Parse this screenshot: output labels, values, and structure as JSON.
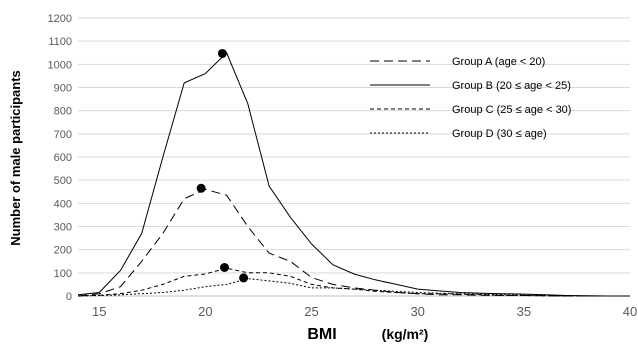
{
  "chart_data": {
    "type": "line",
    "xlabel": "BMI",
    "xunit": "(kg/m²)",
    "ylabel": "Number of male participants",
    "xlim": [
      14,
      40
    ],
    "ylim": [
      0,
      1200
    ],
    "xticks": [
      15,
      20,
      25,
      30,
      35,
      40
    ],
    "yticks": [
      0,
      100,
      200,
      300,
      400,
      500,
      600,
      700,
      800,
      900,
      1000,
      1100,
      1200
    ],
    "grid": "horizontal",
    "legend_position": "top-right",
    "series": [
      {
        "name": "Group A (age < 20)",
        "style": "long-dash",
        "x": [
          14,
          15,
          16,
          17,
          18,
          19,
          20,
          21,
          22,
          23,
          24,
          25,
          26,
          27,
          28,
          29,
          30,
          31,
          32,
          33,
          34,
          35,
          36,
          37,
          38,
          39,
          40
        ],
        "y": [
          0,
          10,
          40,
          150,
          270,
          420,
          460,
          435,
          300,
          185,
          150,
          80,
          50,
          35,
          25,
          15,
          10,
          5,
          5,
          3,
          2,
          2,
          1,
          0,
          0,
          0,
          0
        ],
        "peak": [
          19.8,
          465
        ]
      },
      {
        "name": "Group B (20 ≤ age < 25)",
        "style": "solid",
        "x": [
          14,
          15,
          16,
          17,
          18,
          19,
          20,
          21,
          22,
          23,
          24,
          25,
          26,
          27,
          28,
          29,
          30,
          31,
          32,
          33,
          34,
          35,
          36,
          37,
          38,
          39,
          40
        ],
        "y": [
          5,
          15,
          110,
          270,
          600,
          920,
          960,
          1050,
          830,
          475,
          340,
          225,
          135,
          95,
          70,
          50,
          30,
          22,
          15,
          12,
          10,
          8,
          5,
          2,
          1,
          0,
          0
        ],
        "peak": [
          20.8,
          1047
        ]
      },
      {
        "name": "Group C (25 ≤ age < 30)",
        "style": "dash",
        "x": [
          14,
          15,
          16,
          17,
          18,
          19,
          20,
          21,
          22,
          23,
          24,
          25,
          26,
          27,
          28,
          29,
          30,
          31,
          32,
          33,
          34,
          35,
          36,
          37,
          38,
          39,
          40
        ],
        "y": [
          0,
          3,
          10,
          25,
          50,
          85,
          95,
          120,
          100,
          100,
          85,
          50,
          35,
          30,
          20,
          15,
          10,
          10,
          8,
          5,
          3,
          2,
          1,
          0,
          0,
          0,
          0
        ],
        "peak": [
          20.9,
          123
        ]
      },
      {
        "name": "Group D (30 ≤ age)",
        "style": "dot",
        "x": [
          14,
          15,
          16,
          17,
          18,
          19,
          20,
          21,
          22,
          23,
          24,
          25,
          26,
          27,
          28,
          29,
          30,
          31,
          32,
          33,
          34,
          35,
          36,
          37,
          38,
          39,
          40
        ],
        "y": [
          0,
          2,
          5,
          10,
          15,
          25,
          40,
          50,
          75,
          65,
          55,
          35,
          35,
          30,
          25,
          20,
          15,
          12,
          10,
          8,
          6,
          4,
          2,
          1,
          0,
          0,
          0
        ],
        "peak": [
          21.8,
          78
        ]
      }
    ]
  }
}
